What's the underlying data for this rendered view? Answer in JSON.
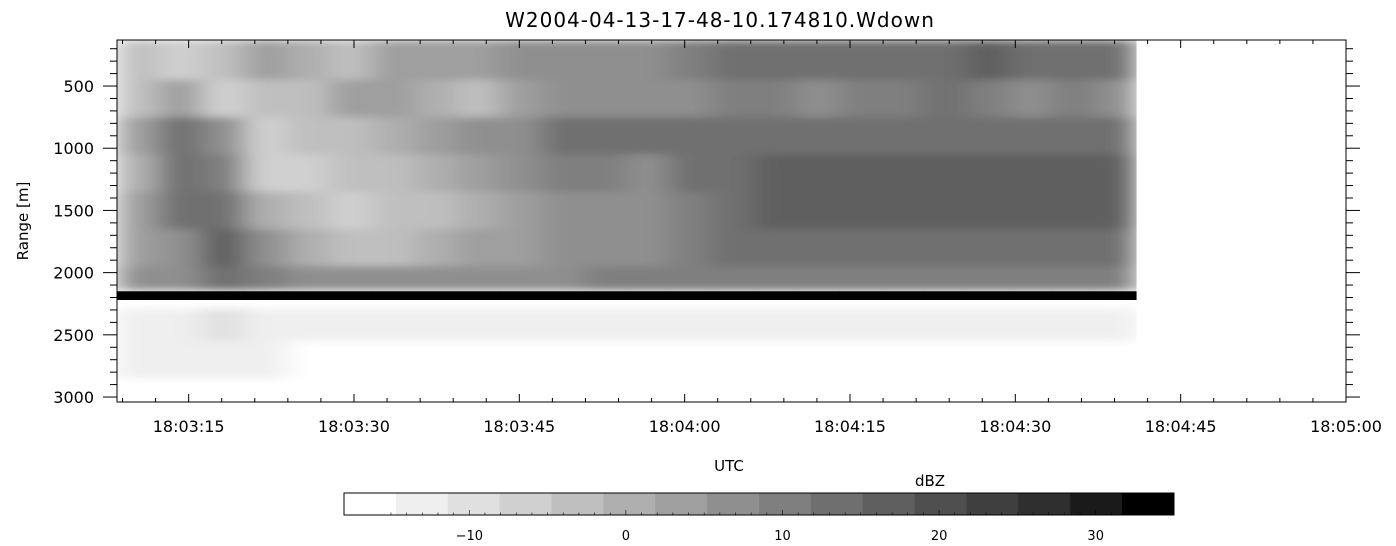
{
  "chart_data": [
    {
      "type": "heatmap",
      "title": "W2004-04-13-17-48-10.174810.Wdown",
      "xlabel": "UTC",
      "ylabel": "Range [m]",
      "x_ticks": [
        "18:03:15",
        "18:03:30",
        "18:03:45",
        "18:04:00",
        "18:04:15",
        "18:04:30",
        "18:04:45",
        "18:05:00"
      ],
      "x_tick_seconds": [
        195,
        210,
        225,
        240,
        255,
        270,
        285,
        300
      ],
      "xlim_seconds_after_18_00": [
        188.5,
        300
      ],
      "data_end_seconds_after_18_00": 281,
      "y_ticks": [
        500,
        1000,
        1500,
        2000,
        2500,
        3000
      ],
      "ylim": [
        3040,
        130
      ],
      "y_inverted": true,
      "colormap": "grayscale (low = white, high = black)",
      "rows": [
        {
          "range_m": 300,
          "dbz": [
            -4,
            -6,
            -2,
            2,
            0,
            -2,
            2,
            4,
            4,
            6,
            8,
            8,
            6,
            10,
            12,
            12,
            14,
            12,
            12,
            14,
            16,
            14,
            12,
            12
          ]
        },
        {
          "range_m": 600,
          "dbz": [
            -2,
            4,
            -6,
            -4,
            -2,
            2,
            2,
            0,
            -2,
            4,
            6,
            6,
            8,
            8,
            10,
            10,
            8,
            10,
            10,
            12,
            10,
            8,
            10,
            8
          ]
        },
        {
          "range_m": 900,
          "dbz": [
            2,
            12,
            8,
            -6,
            -4,
            -2,
            0,
            2,
            6,
            8,
            12,
            14,
            12,
            12,
            14,
            14,
            14,
            14,
            14,
            12,
            14,
            12,
            12,
            12
          ]
        },
        {
          "range_m": 1200,
          "dbz": [
            0,
            14,
            10,
            -8,
            -6,
            -4,
            -2,
            0,
            2,
            6,
            10,
            10,
            8,
            12,
            14,
            16,
            16,
            16,
            16,
            16,
            16,
            16,
            16,
            16
          ]
        },
        {
          "range_m": 1500,
          "dbz": [
            2,
            12,
            14,
            0,
            -4,
            -6,
            -4,
            -2,
            0,
            4,
            8,
            8,
            8,
            10,
            14,
            16,
            16,
            16,
            16,
            16,
            16,
            16,
            16,
            16
          ]
        },
        {
          "range_m": 1800,
          "dbz": [
            4,
            8,
            16,
            6,
            0,
            -2,
            -2,
            0,
            2,
            4,
            6,
            8,
            8,
            10,
            12,
            12,
            12,
            14,
            14,
            14,
            12,
            12,
            12,
            12
          ]
        },
        {
          "range_m": 2100,
          "dbz": [
            8,
            8,
            12,
            10,
            8,
            8,
            8,
            8,
            8,
            8,
            8,
            10,
            10,
            10,
            10,
            10,
            10,
            10,
            10,
            10,
            10,
            10,
            10,
            10
          ]
        },
        {
          "range_m": 2180,
          "dbz": [
            32,
            32,
            32,
            32,
            32,
            32,
            32,
            32,
            32,
            32,
            32,
            32,
            32,
            32,
            32,
            32,
            32,
            32,
            32,
            32,
            32,
            32,
            32,
            32
          ]
        },
        {
          "range_m": 2400,
          "dbz": [
            -12,
            -12,
            -10,
            -12,
            -14,
            -14,
            -14,
            -14,
            -14,
            -14,
            -14,
            -14,
            -14,
            -14,
            -14,
            -14,
            -14,
            -14,
            -14,
            -14,
            -14,
            -14,
            -14,
            -14
          ]
        },
        {
          "range_m": 2700,
          "dbz": [
            -14,
            -14,
            -12,
            -14,
            -15,
            -15,
            -15,
            -15,
            -15,
            -15,
            -15,
            -15,
            -15,
            -15,
            -15,
            -15,
            -15,
            -15,
            -15,
            -15,
            -15,
            -15,
            -15,
            -15
          ]
        },
        {
          "range_m": 3000,
          "dbz": [
            -15,
            -15,
            -15,
            -15,
            -15,
            -15,
            -15,
            -15,
            -15,
            -15,
            -15,
            -15,
            -15,
            -15,
            -15,
            -15,
            -15,
            -15,
            -15,
            -15,
            -15,
            -15,
            -15,
            -15
          ]
        }
      ],
      "grid": false
    },
    {
      "type": "colorbar",
      "title": "dBZ",
      "ticks": [
        -10,
        0,
        10,
        20,
        30
      ],
      "range": [
        -18,
        35
      ],
      "n_levels": 16,
      "colors": [
        "#ffffff",
        "#efefef",
        "#e0e0e0",
        "#d0d0d0",
        "#bfbfbf",
        "#afafaf",
        "#9f9f9f",
        "#8f8f8f",
        "#7f7f7f",
        "#6f6f6f",
        "#5f5f5f",
        "#4f4f4f",
        "#3f3f3f",
        "#2f2f2f",
        "#1a1a1a",
        "#000000"
      ]
    }
  ]
}
